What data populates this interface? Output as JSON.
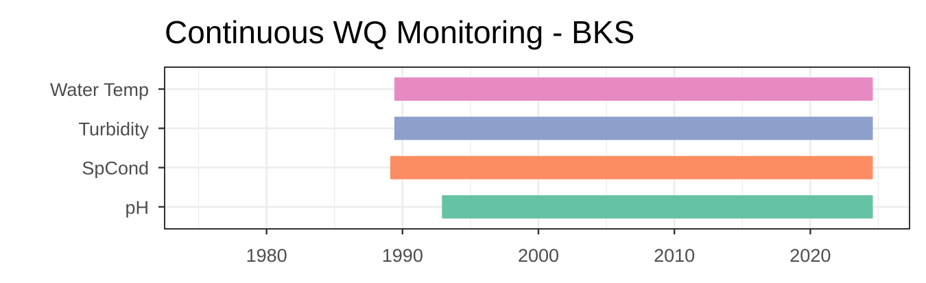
{
  "chart_data": {
    "type": "bar",
    "orientation": "horizontal",
    "title": "Continuous WQ Monitoring - BKS",
    "xlabel": "",
    "ylabel": "",
    "xlim": [
      1972.5,
      2027.3
    ],
    "x_ticks": [
      1980,
      1990,
      2000,
      2010,
      2020
    ],
    "x_tick_labels": [
      "1980",
      "1990",
      "2000",
      "2010",
      "2020"
    ],
    "x_minor_ticks": [
      1975,
      1985,
      1995,
      2005,
      2015,
      2025
    ],
    "categories": [
      "pH",
      "SpCond",
      "Turbidity",
      "Water Temp"
    ],
    "ranges": [
      {
        "category": "pH",
        "start": 1992.9,
        "end": 2024.6,
        "color": "#66C2A5"
      },
      {
        "category": "SpCond",
        "start": 1989.1,
        "end": 2024.6,
        "color": "#FC8D62"
      },
      {
        "category": "Turbidity",
        "start": 1989.4,
        "end": 2024.6,
        "color": "#8DA0CB"
      },
      {
        "category": "Water Temp",
        "start": 1989.4,
        "end": 2024.6,
        "color": "#E78AC3"
      }
    ],
    "grid": true,
    "legend": "none",
    "theme": "bw"
  }
}
